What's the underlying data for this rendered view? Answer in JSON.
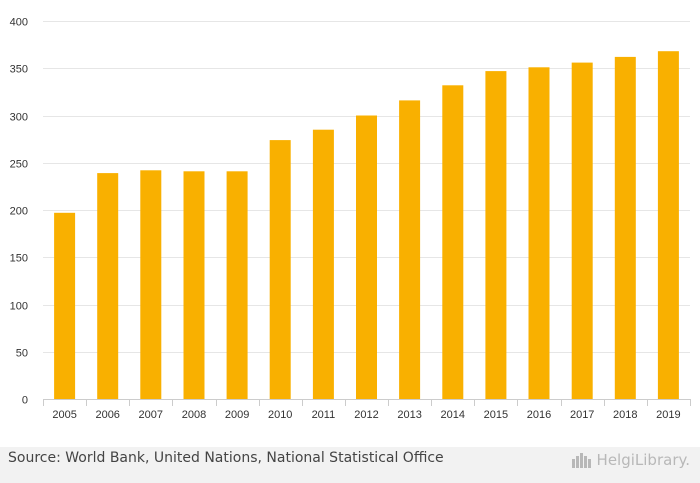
{
  "chart_data": {
    "type": "bar",
    "categories": [
      "2005",
      "2006",
      "2007",
      "2008",
      "2009",
      "2010",
      "2011",
      "2012",
      "2013",
      "2014",
      "2015",
      "2016",
      "2017",
      "2018",
      "2019"
    ],
    "values": [
      197,
      239,
      242,
      241,
      241,
      274,
      285,
      300,
      316,
      332,
      347,
      351,
      356,
      362,
      368
    ],
    "ylim": [
      0,
      400
    ],
    "yticks": [
      0,
      50,
      100,
      150,
      200,
      250,
      300,
      350,
      400
    ],
    "title": "",
    "xlabel": "",
    "ylabel": "",
    "grid": true,
    "bar_color": "#f9b000"
  },
  "footer": {
    "source": "Source: World Bank, United Nations, National Statistical Office",
    "logo_text": "HelgiLibrary."
  }
}
